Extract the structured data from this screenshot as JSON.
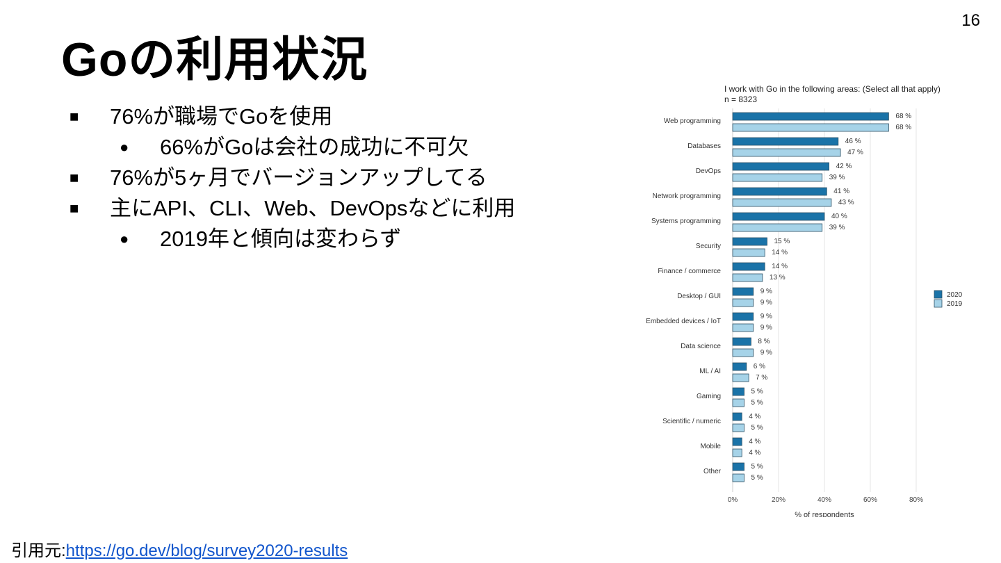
{
  "page_number": "16",
  "title": "Goの利用状況",
  "bullets": [
    {
      "level": 1,
      "marker": "■",
      "text": "76%が職場でGoを使用"
    },
    {
      "level": 2,
      "marker": "●",
      "text": "66%がGoは会社の成功に不可欠"
    },
    {
      "level": 1,
      "marker": "■",
      "text": "76%が5ヶ月でバージョンアップしてる"
    },
    {
      "level": 1,
      "marker": "■",
      "text": "主にAPI、CLI、Web、DevOpsなどに利用"
    },
    {
      "level": 2,
      "marker": "●",
      "text": "2019年と傾向は変わらず"
    }
  ],
  "source": {
    "label": "引用元:",
    "link_text": "https://go.dev/blog/survey2020-results"
  },
  "chart_data": {
    "type": "bar",
    "orientation": "horizontal",
    "title": "I work with Go in the following areas: (Select all that apply)",
    "subtitle": "n = 8323",
    "xlabel": "% of respondents",
    "xlim": [
      0,
      80
    ],
    "xticks": [
      "0%",
      "20%",
      "40%",
      "60%",
      "80%"
    ],
    "grid": true,
    "legend_position": "right",
    "categories": [
      "Web programming",
      "Databases",
      "DevOps",
      "Network programming",
      "Systems programming",
      "Security",
      "Finance / commerce",
      "Desktop / GUI",
      "Embedded devices / IoT",
      "Data science",
      "ML / AI",
      "Gaming",
      "Scientific / numeric",
      "Mobile",
      "Other"
    ],
    "series": [
      {
        "name": "2020",
        "color": "#1a73a8",
        "values": [
          68,
          46,
          42,
          41,
          40,
          15,
          14,
          9,
          9,
          8,
          6,
          5,
          4,
          4,
          5
        ]
      },
      {
        "name": "2019",
        "color": "#a6d3e8",
        "values": [
          68,
          47,
          39,
          43,
          39,
          14,
          13,
          9,
          9,
          9,
          7,
          5,
          5,
          4,
          5
        ]
      }
    ]
  }
}
